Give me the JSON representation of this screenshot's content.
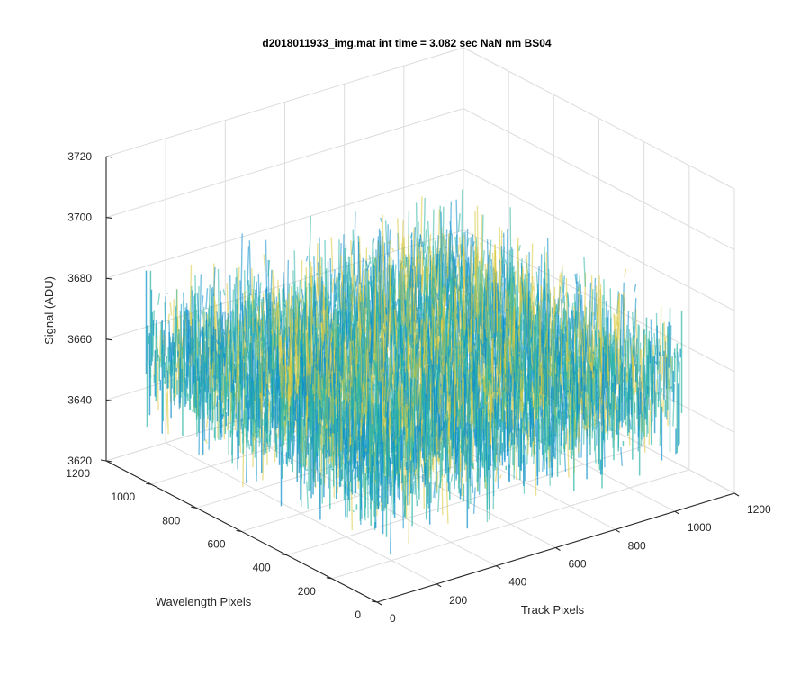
{
  "chart_data": {
    "type": "surface",
    "title": "d2018011933_img.mat int time = 3.082 sec  NaN nm BS04",
    "xlabel": "Track Pixels",
    "ylabel": "Wavelength Pixels",
    "zlabel": "Signal (ADU)",
    "xlim": [
      0,
      1200
    ],
    "ylim": [
      0,
      1200
    ],
    "zlim": [
      3620,
      3720
    ],
    "x_ticks": [
      "0",
      "200",
      "400",
      "600",
      "800",
      "1000",
      "1200"
    ],
    "y_ticks": [
      "0",
      "200",
      "400",
      "600",
      "800",
      "1000",
      "1200"
    ],
    "z_ticks": [
      "3620",
      "3640",
      "3660",
      "3680",
      "3700",
      "3720"
    ],
    "surface": {
      "x_range": [
        1,
        1024
      ],
      "y_range": [
        1,
        1024
      ],
      "mean": 3659,
      "noise_min": 3630,
      "noise_max": 3697
    },
    "colormap": "parula",
    "grid": true,
    "colors": {
      "low": "#0a8ecb",
      "mid": "#2cb5a4",
      "high": "#d9c83a"
    }
  }
}
